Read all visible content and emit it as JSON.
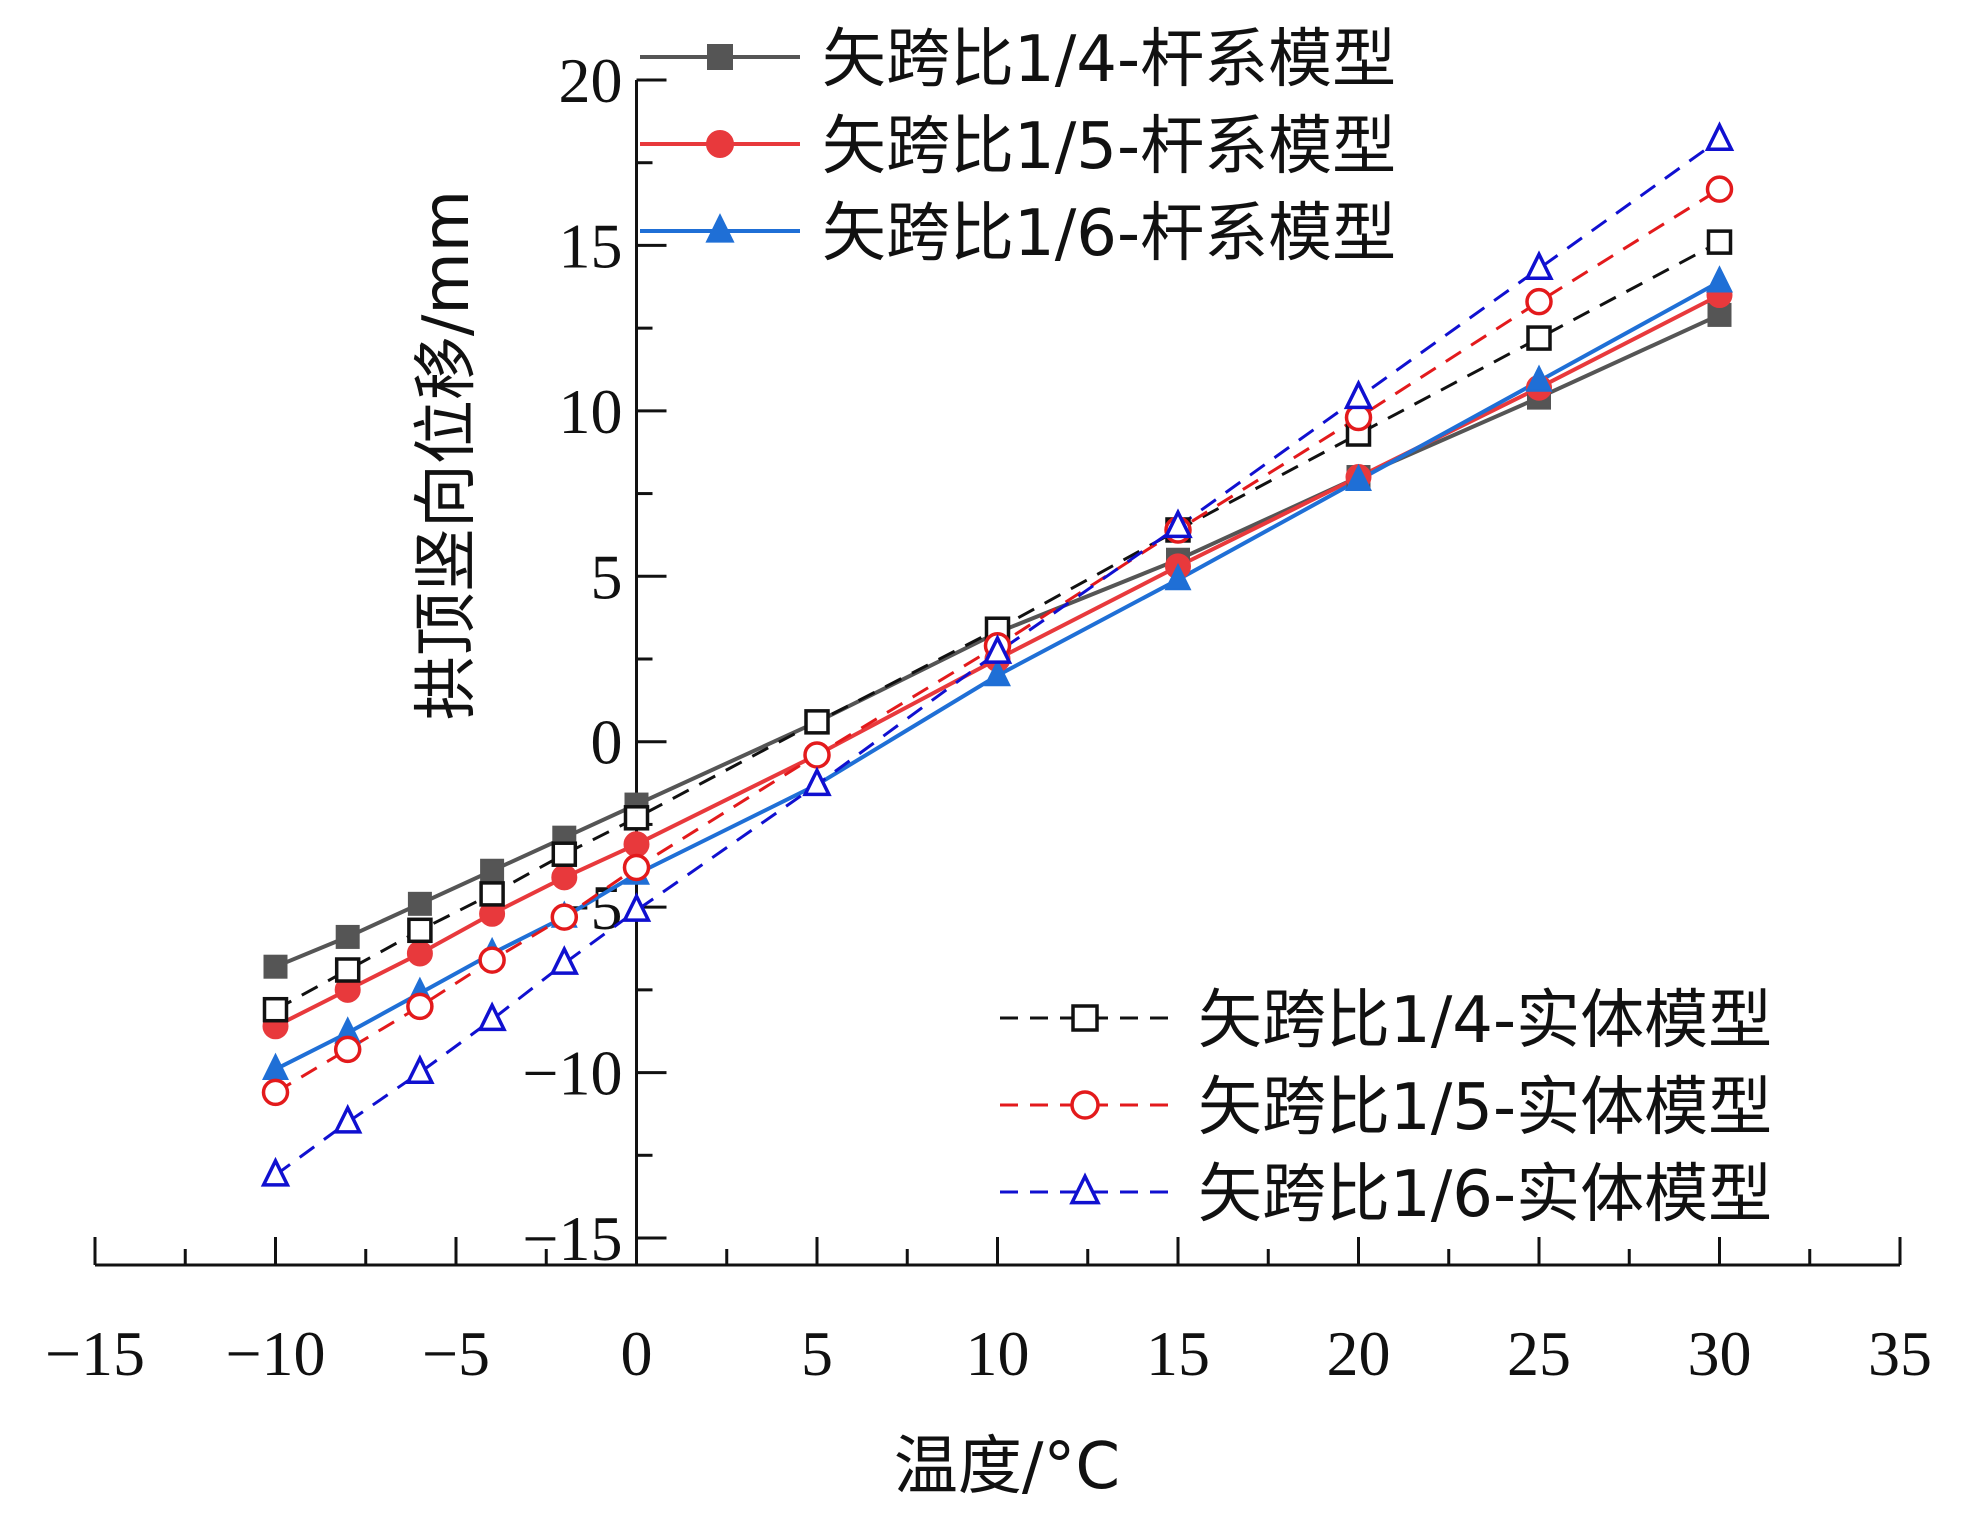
{
  "chart_data": {
    "type": "line",
    "title": "",
    "xlabel": "温度/°C",
    "ylabel": "拱顶竖向位移/mm",
    "xlim": [
      -15,
      35
    ],
    "ylim": [
      -15,
      20
    ],
    "xticks": [
      -15,
      -10,
      -5,
      0,
      5,
      10,
      15,
      20,
      25,
      30,
      35
    ],
    "yticks": [
      -15,
      -10,
      -5,
      0,
      5,
      10,
      15,
      20
    ],
    "xtick_labels": [
      "−15",
      "−10",
      "−5",
      "0",
      "5",
      "10",
      "15",
      "20",
      "25",
      "30",
      "35"
    ],
    "ytick_labels": [
      "−15",
      "−10",
      "−5",
      "0",
      "5",
      "10",
      "15",
      "20"
    ],
    "x": [
      -10,
      -8,
      -6,
      -4,
      -2,
      0,
      5,
      10,
      15,
      20,
      25,
      30
    ],
    "grid": false,
    "legend_beam": "top-left",
    "legend_solid": "bottom-right",
    "series": [
      {
        "name": "矢跨比1/4-杆系模型",
        "group": "beam",
        "color": "#555555",
        "marker": "square",
        "filled": true,
        "dashed": false,
        "values": [
          -6.8,
          -5.9,
          -4.9,
          -3.9,
          -2.9,
          -1.9,
          0.6,
          3.3,
          5.5,
          8.0,
          10.4,
          12.9
        ]
      },
      {
        "name": "矢跨比1/5-杆系模型",
        "group": "beam",
        "color": "#e8393c",
        "marker": "circle",
        "filled": true,
        "dashed": false,
        "values": [
          -8.6,
          -7.5,
          -6.4,
          -5.2,
          -4.1,
          -3.1,
          -0.4,
          2.5,
          5.3,
          8.0,
          10.7,
          13.5
        ]
      },
      {
        "name": "矢跨比1/6-杆系模型",
        "group": "beam",
        "color": "#1f6fd6",
        "marker": "triangle",
        "filled": true,
        "dashed": false,
        "values": [
          -9.9,
          -8.8,
          -7.6,
          -6.4,
          -5.3,
          -4.0,
          -1.3,
          2.0,
          4.9,
          7.9,
          10.9,
          13.9
        ]
      },
      {
        "name": "矢跨比1/4-实体模型",
        "group": "solid",
        "color": "#111111",
        "marker": "square",
        "filled": false,
        "dashed": true,
        "values": [
          -8.1,
          -6.9,
          -5.7,
          -4.6,
          -3.4,
          -2.3,
          0.6,
          3.4,
          6.4,
          9.3,
          12.2,
          15.1
        ]
      },
      {
        "name": "矢跨比1/5-实体模型",
        "group": "solid",
        "color": "#e31a1c",
        "marker": "circle",
        "filled": false,
        "dashed": true,
        "values": [
          -10.6,
          -9.3,
          -8.0,
          -6.6,
          -5.3,
          -3.8,
          -0.4,
          2.9,
          6.4,
          9.8,
          13.3,
          16.7
        ]
      },
      {
        "name": "矢跨比1/6-实体模型",
        "group": "solid",
        "color": "#1010d0",
        "marker": "triangle",
        "filled": false,
        "dashed": true,
        "values": [
          -13.1,
          -11.5,
          -10.0,
          -8.4,
          -6.7,
          -5.1,
          -1.3,
          2.7,
          6.5,
          10.4,
          14.3,
          18.2
        ]
      }
    ]
  }
}
